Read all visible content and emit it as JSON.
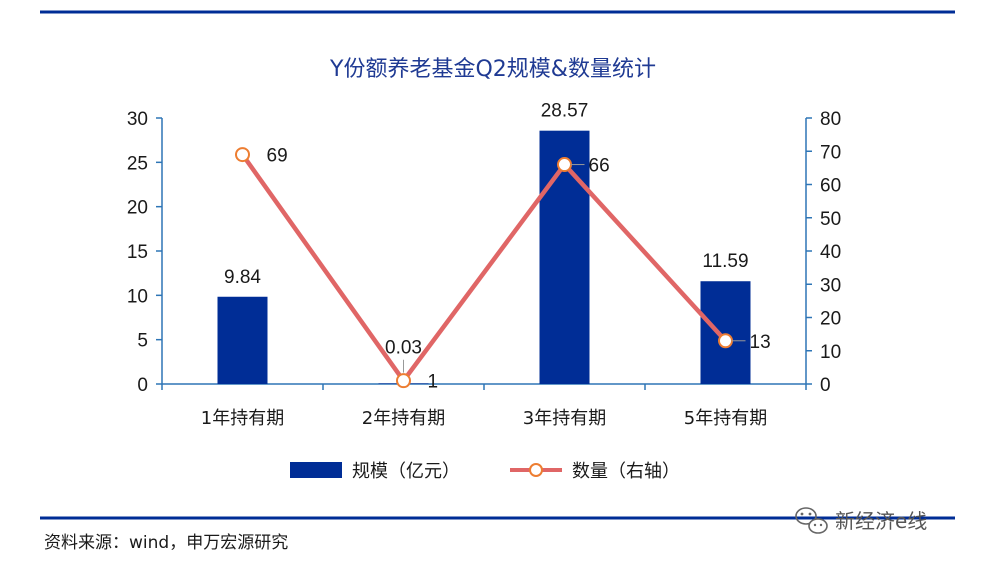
{
  "chart_data": {
    "type": "bar+line",
    "title": "Y份额养老基金Q2规模&数量统计",
    "categories": [
      "1年持有期",
      "2年持有期",
      "3年持有期",
      "5年持有期"
    ],
    "series": [
      {
        "name": "规模（亿元）",
        "type": "bar",
        "axis": "left",
        "values": [
          9.84,
          0.03,
          28.57,
          11.59
        ],
        "labels": [
          "9.84",
          "0.03",
          "28.57",
          "11.59"
        ]
      },
      {
        "name": "数量（右轴）",
        "type": "line",
        "axis": "right",
        "values": [
          69,
          1,
          66,
          13
        ],
        "labels": [
          "69",
          "1",
          "66",
          "13"
        ]
      }
    ],
    "y_left": {
      "min": 0,
      "max": 30,
      "ticks": [
        "0",
        "5",
        "10",
        "15",
        "20",
        "25",
        "30"
      ]
    },
    "y_right": {
      "min": 0,
      "max": 80,
      "ticks": [
        "0",
        "10",
        "20",
        "30",
        "40",
        "50",
        "60",
        "70",
        "80"
      ]
    },
    "legend_position": "bottom",
    "grid": false
  },
  "source": "资料来源：wind，申万宏源研究",
  "watermark": "新经济e线",
  "colors": {
    "bar": "#002d96",
    "line": "#e06666",
    "marker": "#ed7d31",
    "axis": "#2e75b6",
    "rule": "#002d96",
    "title": "#1f3a93"
  }
}
